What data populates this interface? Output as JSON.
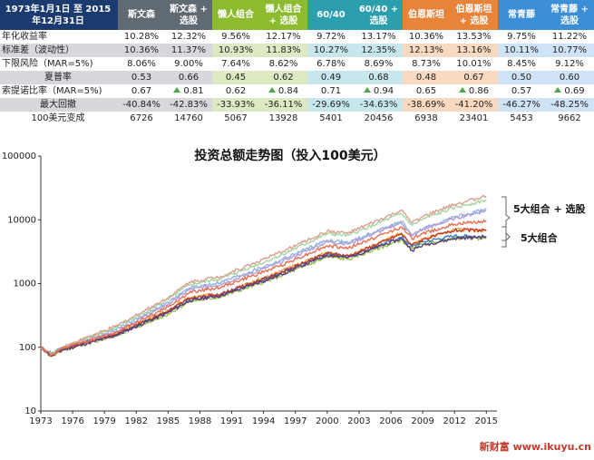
{
  "header_label": "1973年1月1日 至 2015年12月31日",
  "colors": {
    "header_navy": "#1b3a6f",
    "group_gray": "#606a73",
    "group_green": "#8dbb2f",
    "group_teal": "#2b9fae",
    "group_orange": "#e8843a",
    "group_blue": "#3b8fd6",
    "shade_gray": "#d6d8db",
    "shade_green": "#dde9c2",
    "shade_teal": "#c8e7ec",
    "shade_orange": "#f9d9c0",
    "shade_blue": "#cfe3f6",
    "triangle": "#4ea64a",
    "watermark": "#c0392b"
  },
  "columns": [
    {
      "name": "斯文森",
      "group": "gray"
    },
    {
      "name": "斯文森 + 选股",
      "group": "gray"
    },
    {
      "name": "懒人组合",
      "group": "green"
    },
    {
      "name": "懒人组合 + 选股",
      "group": "green"
    },
    {
      "name": "60/40",
      "group": "teal"
    },
    {
      "name": "60/40 + 选股",
      "group": "teal"
    },
    {
      "name": "伯恩斯坦",
      "group": "orange"
    },
    {
      "name": "伯恩斯坦 + 选股",
      "group": "orange"
    },
    {
      "name": "常青藤",
      "group": "blue"
    },
    {
      "name": "常青藤 + 选股",
      "group": "blue"
    }
  ],
  "rows": [
    {
      "label": "年化收益率",
      "shaded": false,
      "values": [
        "10.28%",
        "12.32%",
        "9.56%",
        "12.17%",
        "9.72%",
        "13.17%",
        "10.36%",
        "13.53%",
        "9.75%",
        "11.22%"
      ]
    },
    {
      "label": "标准差（波动性）",
      "shaded": true,
      "values": [
        "10.36%",
        "11.37%",
        "10.93%",
        "11.83%",
        "10.27%",
        "12.35%",
        "12.13%",
        "13.16%",
        "10.11%",
        "10.77%"
      ]
    },
    {
      "label": "下限风险（MAR=5%)",
      "shaded": false,
      "values": [
        "8.06%",
        "9.00%",
        "7.64%",
        "8.62%",
        "6.78%",
        "8.69%",
        "8.73%",
        "10.01%",
        "8.45%",
        "9.12%"
      ]
    },
    {
      "label": "夏普率",
      "shaded": true,
      "center": true,
      "values": [
        "0.53",
        "0.66",
        "0.45",
        "0.62",
        "0.49",
        "0.68",
        "0.48",
        "0.67",
        "0.50",
        "0.60"
      ]
    },
    {
      "label": "索提诺比率（MAR=5%)",
      "shaded": false,
      "values": [
        "0.67",
        "0.81",
        "0.62",
        "0.84",
        "0.71",
        "0.94",
        "0.65",
        "0.86",
        "0.57",
        "0.69"
      ],
      "arrows": [
        false,
        true,
        false,
        true,
        false,
        true,
        false,
        true,
        false,
        true
      ]
    },
    {
      "label": "最大回撤",
      "shaded": true,
      "center": true,
      "values": [
        "-40.84%",
        "-42.83%",
        "-33.93%",
        "-36.11%",
        "-29.69%",
        "-34.63%",
        "-38.69%",
        "-41.20%",
        "-46.27%",
        "-48.25%"
      ]
    },
    {
      "label": "100美元变成",
      "shaded": false,
      "center": true,
      "values": [
        "6726",
        "14760",
        "5067",
        "13928",
        "5401",
        "20456",
        "6938",
        "23401",
        "5453",
        "9662"
      ]
    }
  ],
  "watermark": "新财富 www.ikuyu.cn",
  "chart_data": {
    "type": "line",
    "title": "投资总额走势图（投入100美元）",
    "xlabel": "",
    "ylabel": "",
    "y_scale": "log",
    "ylim": [
      10,
      100000
    ],
    "xlim": [
      1973,
      2016
    ],
    "y_ticks": [
      10,
      100,
      1000,
      10000,
      100000
    ],
    "x_ticks": [
      1973,
      1976,
      1979,
      1982,
      1985,
      1988,
      1991,
      1994,
      1997,
      2000,
      2003,
      2006,
      2009,
      2012,
      2015
    ],
    "grid": false,
    "annotations": [
      "5大组合 + 选股",
      "5大组合"
    ],
    "series": [
      {
        "color": "#f0a43a",
        "values": [
          [
            1973,
            100
          ],
          [
            1974,
            75
          ],
          [
            1975,
            95
          ],
          [
            1980,
            160
          ],
          [
            1985,
            380
          ],
          [
            1987,
            600
          ],
          [
            1990,
            700
          ],
          [
            1995,
            1400
          ],
          [
            2000,
            3100
          ],
          [
            2002,
            2700
          ],
          [
            2007,
            6200
          ],
          [
            2008,
            4100
          ],
          [
            2009,
            5000
          ],
          [
            2012,
            7000
          ],
          [
            2015,
            6726
          ]
        ]
      },
      {
        "color": "#8cb7e0",
        "values": [
          [
            1973,
            100
          ],
          [
            1974,
            78
          ],
          [
            1975,
            98
          ],
          [
            1980,
            190
          ],
          [
            1985,
            500
          ],
          [
            1987,
            850
          ],
          [
            1990,
            1050
          ],
          [
            1995,
            2100
          ],
          [
            2000,
            4800
          ],
          [
            2002,
            4400
          ],
          [
            2007,
            9500
          ],
          [
            2008,
            5700
          ],
          [
            2009,
            7200
          ],
          [
            2012,
            11000
          ],
          [
            2015,
            14760
          ]
        ]
      },
      {
        "color": "#9bc24a",
        "values": [
          [
            1973,
            100
          ],
          [
            1974,
            72
          ],
          [
            1975,
            88
          ],
          [
            1980,
            150
          ],
          [
            1985,
            330
          ],
          [
            1987,
            520
          ],
          [
            1990,
            620
          ],
          [
            1995,
            1200
          ],
          [
            2000,
            2600
          ],
          [
            2002,
            2400
          ],
          [
            2007,
            4800
          ],
          [
            2008,
            3500
          ],
          [
            2009,
            4100
          ],
          [
            2012,
            5200
          ],
          [
            2015,
            5067
          ]
        ]
      },
      {
        "color": "#b59bd6",
        "values": [
          [
            1973,
            100
          ],
          [
            1974,
            76
          ],
          [
            1975,
            96
          ],
          [
            1980,
            175
          ],
          [
            1985,
            470
          ],
          [
            1987,
            800
          ],
          [
            1990,
            980
          ],
          [
            1995,
            1950
          ],
          [
            2000,
            4500
          ],
          [
            2002,
            4200
          ],
          [
            2007,
            9000
          ],
          [
            2008,
            5600
          ],
          [
            2009,
            7000
          ],
          [
            2012,
            10500
          ],
          [
            2015,
            13928
          ]
        ]
      },
      {
        "color": "#3a7fc1",
        "values": [
          [
            1973,
            100
          ],
          [
            1974,
            80
          ],
          [
            1975,
            98
          ],
          [
            1980,
            155
          ],
          [
            1985,
            360
          ],
          [
            1987,
            560
          ],
          [
            1990,
            680
          ],
          [
            1995,
            1300
          ],
          [
            2000,
            2900
          ],
          [
            2002,
            2650
          ],
          [
            2007,
            5300
          ],
          [
            2008,
            3800
          ],
          [
            2009,
            4500
          ],
          [
            2012,
            5600
          ],
          [
            2015,
            5401
          ]
        ]
      },
      {
        "color": "#a6d4a0",
        "values": [
          [
            1973,
            100
          ],
          [
            1974,
            78
          ],
          [
            1975,
            100
          ],
          [
            1980,
            200
          ],
          [
            1985,
            560
          ],
          [
            1987,
            950
          ],
          [
            1990,
            1200
          ],
          [
            1995,
            2500
          ],
          [
            2000,
            6000
          ],
          [
            2002,
            5700
          ],
          [
            2007,
            12500
          ],
          [
            2008,
            8200
          ],
          [
            2009,
            10200
          ],
          [
            2012,
            15500
          ],
          [
            2015,
            20456
          ]
        ]
      },
      {
        "color": "#c0392b",
        "values": [
          [
            1973,
            100
          ],
          [
            1974,
            74
          ],
          [
            1975,
            92
          ],
          [
            1980,
            158
          ],
          [
            1985,
            370
          ],
          [
            1987,
            580
          ],
          [
            1990,
            690
          ],
          [
            1995,
            1350
          ],
          [
            2000,
            3000
          ],
          [
            2002,
            2700
          ],
          [
            2007,
            6000
          ],
          [
            2008,
            4000
          ],
          [
            2009,
            4900
          ],
          [
            2012,
            6800
          ],
          [
            2015,
            6938
          ]
        ]
      },
      {
        "color": "#d9a090",
        "values": [
          [
            1973,
            100
          ],
          [
            1974,
            74
          ],
          [
            1975,
            100
          ],
          [
            1980,
            210
          ],
          [
            1985,
            600
          ],
          [
            1987,
            1050
          ],
          [
            1990,
            1300
          ],
          [
            1995,
            2800
          ],
          [
            2000,
            6600
          ],
          [
            2002,
            6200
          ],
          [
            2007,
            14000
          ],
          [
            2008,
            9000
          ],
          [
            2009,
            11200
          ],
          [
            2012,
            17500
          ],
          [
            2015,
            23401
          ]
        ]
      },
      {
        "color": "#5a3a7a",
        "values": [
          [
            1973,
            100
          ],
          [
            1974,
            73
          ],
          [
            1975,
            90
          ],
          [
            1980,
            152
          ],
          [
            1985,
            350
          ],
          [
            1987,
            540
          ],
          [
            1990,
            650
          ],
          [
            1995,
            1250
          ],
          [
            2000,
            2800
          ],
          [
            2002,
            2550
          ],
          [
            2007,
            5100
          ],
          [
            2008,
            3300
          ],
          [
            2009,
            4000
          ],
          [
            2012,
            5100
          ],
          [
            2015,
            5453
          ]
        ]
      },
      {
        "color": "#e46e50",
        "values": [
          [
            1973,
            100
          ],
          [
            1974,
            75
          ],
          [
            1975,
            94
          ],
          [
            1980,
            170
          ],
          [
            1985,
            430
          ],
          [
            1987,
            720
          ],
          [
            1990,
            880
          ],
          [
            1995,
            1750
          ],
          [
            2000,
            3900
          ],
          [
            2002,
            3600
          ],
          [
            2007,
            7700
          ],
          [
            2008,
            5000
          ],
          [
            2009,
            6100
          ],
          [
            2012,
            8500
          ],
          [
            2015,
            9662
          ]
        ]
      }
    ]
  }
}
